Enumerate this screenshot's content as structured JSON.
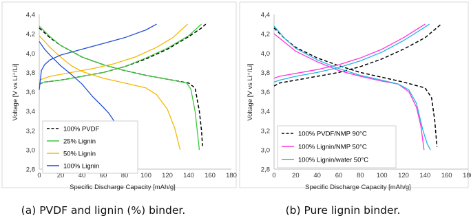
{
  "chart_data": [
    {
      "type": "line",
      "caption": "(a) PVDF and lignin (%) binder.",
      "xlabel": "Specific Discharge Capacity [mAh/g]",
      "ylabel": "Voltage [V vs Li⁺/Li]",
      "xlim": [
        0,
        180
      ],
      "ylim": [
        2.8,
        4.4
      ],
      "xticks": [
        "0",
        "20",
        "40",
        "60",
        "80",
        "100",
        "120",
        "140",
        "160",
        "180"
      ],
      "yticks": [
        "2,8",
        "3,0",
        "3,2",
        "3,4",
        "3,6",
        "3,8",
        "4,0",
        "4,2",
        "4,4"
      ],
      "grid": false,
      "legend_position": "bottom-left",
      "series": [
        {
          "name": "100% PVDF",
          "color": "#000000",
          "dash": "dashed",
          "charge": [
            [
              0,
              3.68
            ],
            [
              5,
              3.7
            ],
            [
              20,
              3.72
            ],
            [
              40,
              3.76
            ],
            [
              60,
              3.8
            ],
            [
              80,
              3.86
            ],
            [
              100,
              3.94
            ],
            [
              120,
              4.04
            ],
            [
              140,
              4.17
            ],
            [
              152,
              4.26
            ],
            [
              156,
              4.3
            ]
          ],
          "discharge": [
            [
              0,
              4.26
            ],
            [
              10,
              4.16
            ],
            [
              20,
              4.08
            ],
            [
              40,
              3.96
            ],
            [
              60,
              3.88
            ],
            [
              80,
              3.82
            ],
            [
              100,
              3.77
            ],
            [
              120,
              3.73
            ],
            [
              140,
              3.69
            ],
            [
              146,
              3.64
            ],
            [
              150,
              3.4
            ],
            [
              152,
              3.2
            ],
            [
              153,
              3.04
            ]
          ]
        },
        {
          "name": "25% Lignin",
          "color": "#3cc83c",
          "dash": "solid",
          "charge": [
            [
              0,
              3.68
            ],
            [
              5,
              3.7
            ],
            [
              20,
              3.72
            ],
            [
              40,
              3.76
            ],
            [
              60,
              3.8
            ],
            [
              80,
              3.86
            ],
            [
              100,
              3.95
            ],
            [
              120,
              4.05
            ],
            [
              140,
              4.18
            ],
            [
              150,
              4.28
            ],
            [
              152,
              4.3
            ]
          ],
          "discharge": [
            [
              0,
              4.28
            ],
            [
              10,
              4.17
            ],
            [
              20,
              4.08
            ],
            [
              40,
              3.96
            ],
            [
              60,
              3.88
            ],
            [
              80,
              3.82
            ],
            [
              100,
              3.77
            ],
            [
              120,
              3.73
            ],
            [
              138,
              3.69
            ],
            [
              142,
              3.63
            ],
            [
              146,
              3.4
            ],
            [
              148,
              3.2
            ],
            [
              150,
              3.0
            ]
          ]
        },
        {
          "name": "50% Lignin",
          "color": "#f5b800",
          "dash": "solid",
          "charge": [
            [
              0,
              3.72
            ],
            [
              10,
              3.76
            ],
            [
              30,
              3.8
            ],
            [
              50,
              3.84
            ],
            [
              70,
              3.89
            ],
            [
              90,
              3.96
            ],
            [
              110,
              4.06
            ],
            [
              125,
              4.16
            ],
            [
              139,
              4.3
            ]
          ],
          "discharge": [
            [
              0,
              4.18
            ],
            [
              10,
              4.06
            ],
            [
              20,
              3.96
            ],
            [
              30,
              3.87
            ],
            [
              40,
              3.81
            ],
            [
              60,
              3.74
            ],
            [
              80,
              3.69
            ],
            [
              100,
              3.64
            ],
            [
              110,
              3.57
            ],
            [
              120,
              3.42
            ],
            [
              127,
              3.22
            ],
            [
              132,
              3.0
            ]
          ]
        },
        {
          "name": "100% Lignin",
          "color": "#1f4fd8",
          "dash": "solid",
          "charge": [
            [
              0,
              3.62
            ],
            [
              2,
              3.82
            ],
            [
              5,
              3.88
            ],
            [
              10,
              3.93
            ],
            [
              20,
              3.98
            ],
            [
              40,
              4.04
            ],
            [
              60,
              4.1
            ],
            [
              80,
              4.16
            ],
            [
              100,
              4.24
            ],
            [
              110,
              4.3
            ]
          ],
          "discharge": [
            [
              0,
              4.12
            ],
            [
              5,
              4.04
            ],
            [
              10,
              3.98
            ],
            [
              20,
              3.87
            ],
            [
              30,
              3.78
            ],
            [
              40,
              3.68
            ],
            [
              50,
              3.55
            ],
            [
              60,
              3.44
            ],
            [
              65,
              3.38
            ],
            [
              70,
              3.3
            ],
            [
              75,
              3.2
            ],
            [
              80,
              3.08
            ],
            [
              83,
              3.0
            ]
          ]
        }
      ]
    },
    {
      "type": "line",
      "caption": "(b) Pure lignin binder.",
      "xlabel": "Specific Discharge Capacity [mAh/g]",
      "ylabel": "Voltage [V vs Li⁺/Li]",
      "xlim": [
        0,
        180
      ],
      "ylim": [
        2.8,
        4.4
      ],
      "xticks": [
        "0",
        "20",
        "40",
        "60",
        "80",
        "100",
        "120",
        "140",
        "160",
        "180"
      ],
      "yticks": [
        "2,8",
        "3,0",
        "3,2",
        "3,4",
        "3,6",
        "3,8",
        "4,0",
        "4,2",
        "4,4"
      ],
      "grid": false,
      "legend_position": "bottom-left",
      "series": [
        {
          "name": "100% PVDF/NMP 90°C",
          "color": "#000000",
          "dash": "dashed",
          "charge": [
            [
              0,
              3.66
            ],
            [
              5,
              3.69
            ],
            [
              20,
              3.72
            ],
            [
              40,
              3.76
            ],
            [
              60,
              3.8
            ],
            [
              80,
              3.86
            ],
            [
              100,
              3.94
            ],
            [
              120,
              4.04
            ],
            [
              140,
              4.16
            ],
            [
              155,
              4.3
            ]
          ],
          "discharge": [
            [
              0,
              4.26
            ],
            [
              10,
              4.15
            ],
            [
              20,
              4.06
            ],
            [
              40,
              3.95
            ],
            [
              60,
              3.87
            ],
            [
              80,
              3.8
            ],
            [
              100,
              3.75
            ],
            [
              120,
              3.7
            ],
            [
              140,
              3.64
            ],
            [
              146,
              3.54
            ],
            [
              149,
              3.3
            ],
            [
              151,
              3.03
            ]
          ]
        },
        {
          "name": "100% Lignin/NMP 50°C",
          "color": "#ff33dd",
          "dash": "solid",
          "charge": [
            [
              0,
              3.74
            ],
            [
              5,
              3.76
            ],
            [
              20,
              3.79
            ],
            [
              40,
              3.83
            ],
            [
              60,
              3.88
            ],
            [
              80,
              3.95
            ],
            [
              100,
              4.04
            ],
            [
              120,
              4.16
            ],
            [
              140,
              4.3
            ]
          ],
          "discharge": [
            [
              0,
              4.2
            ],
            [
              10,
              4.11
            ],
            [
              20,
              4.02
            ],
            [
              40,
              3.91
            ],
            [
              60,
              3.82
            ],
            [
              80,
              3.76
            ],
            [
              100,
              3.71
            ],
            [
              115,
              3.68
            ],
            [
              125,
              3.6
            ],
            [
              132,
              3.44
            ],
            [
              136,
              3.25
            ],
            [
              139,
              3.0
            ]
          ]
        },
        {
          "name": "100% Lignin/water 50°C",
          "color": "#22b5e6",
          "dash": "solid",
          "charge": [
            [
              0,
              3.7
            ],
            [
              5,
              3.72
            ],
            [
              20,
              3.76
            ],
            [
              40,
              3.8
            ],
            [
              60,
              3.85
            ],
            [
              80,
              3.92
            ],
            [
              100,
              4.01
            ],
            [
              120,
              4.13
            ],
            [
              140,
              4.27
            ],
            [
              144,
              4.3
            ]
          ],
          "discharge": [
            [
              0,
              4.28
            ],
            [
              10,
              4.15
            ],
            [
              20,
              4.05
            ],
            [
              40,
              3.93
            ],
            [
              60,
              3.84
            ],
            [
              80,
              3.77
            ],
            [
              100,
              3.72
            ],
            [
              115,
              3.68
            ],
            [
              125,
              3.62
            ],
            [
              132,
              3.48
            ],
            [
              138,
              3.2
            ],
            [
              142,
              3.06
            ],
            [
              145,
              3.0
            ]
          ]
        }
      ]
    }
  ]
}
